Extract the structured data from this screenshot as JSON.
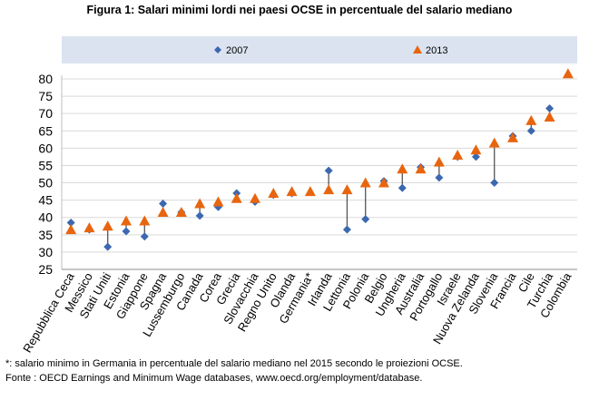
{
  "title": "Figura 1: Salari minimi lordi nei paesi OCSE in percentuale del salario mediano",
  "footnotes": {
    "note": "*: salario minimo in Germania in percentuale del salario mediano nel 2015 secondo le proiezioni OCSE.",
    "source": "Fonte : OECD Earnings and Minimum Wage databases, www.oecd.org/employment/database."
  },
  "colors": {
    "series_2007": "#3c68b0",
    "series_2013": "#e8650f",
    "connector": "#555555",
    "legend_band": "#dbe3f0",
    "grid": "#d9d9d9"
  },
  "chart_data": {
    "type": "scatter",
    "title": "Figura 1: Salari minimi lordi nei paesi OCSE in percentuale del salario mediano",
    "xlabel": "",
    "ylabel": "",
    "ylim": [
      25,
      80
    ],
    "yticks": [
      25,
      30,
      35,
      40,
      45,
      50,
      55,
      60,
      65,
      70,
      75,
      80
    ],
    "grid": true,
    "legend_position": "top",
    "categories": [
      "Repubblica Ceca",
      "Messico",
      "Stati Uniti",
      "Estonia",
      "Giappone",
      "Spagna",
      "Lussemburgo",
      "Canada",
      "Corea",
      "Grecia",
      "Slovacchia",
      "Regno Unito",
      "Olanda",
      "Germania*",
      "Irlanda",
      "Lettonia",
      "Polonia",
      "Belgio",
      "Ungheria",
      "Australia",
      "Portogallo",
      "Israele",
      "Nuova Zelanda",
      "Slovenia",
      "Francia",
      "Cile",
      "Turchia",
      "Colombia"
    ],
    "series": [
      {
        "name": "2007",
        "marker": "diamond",
        "values": [
          38.5,
          36.5,
          31.5,
          36,
          34.5,
          44,
          41.5,
          40.5,
          43,
          47,
          44.5,
          46.5,
          47,
          null,
          53.5,
          36.5,
          39.5,
          50.5,
          48.5,
          54.5,
          51.5,
          57.5,
          57.5,
          50,
          63.5,
          65,
          71.5,
          null
        ]
      },
      {
        "name": "2013",
        "marker": "triangle",
        "values": [
          36.5,
          37,
          37.5,
          39,
          39,
          41.5,
          41.5,
          44,
          44.5,
          45.5,
          45.5,
          47,
          47.5,
          47.5,
          48,
          48,
          50,
          50,
          54,
          54,
          56,
          58,
          59.5,
          61.5,
          63,
          68,
          69,
          81.5
        ]
      }
    ]
  }
}
